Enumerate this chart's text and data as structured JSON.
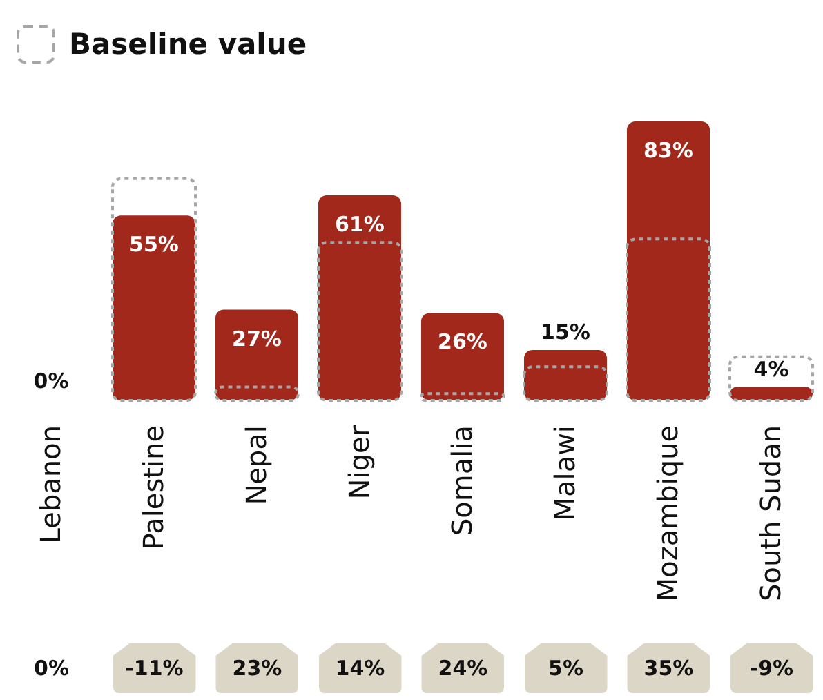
{
  "chart_data": {
    "type": "bar",
    "categories": [
      "Lebanon",
      "Palestine",
      "Nepal",
      "Niger",
      "Somalia",
      "Malawi",
      "Mozambique",
      "South Sudan"
    ],
    "series": [
      {
        "color": "#a3281c",
        "values": [
          0,
          55,
          27,
          61,
          26,
          15,
          83,
          4
        ],
        "value_labels": [
          "0%",
          "55%",
          "27%",
          "61%",
          "26%",
          "15%",
          "83%",
          "4%"
        ]
      },
      {
        "name": "Baseline value",
        "color": "#a6a6a6",
        "values": [
          0,
          66,
          4,
          47,
          2,
          10,
          48,
          13
        ]
      }
    ],
    "legend": "top left",
    "tick_labels": "x",
    "annotations": [
      "0%",
      "-11%",
      "23%",
      "14%",
      "24%",
      "5%",
      "35%",
      "-9%"
    ]
  }
}
